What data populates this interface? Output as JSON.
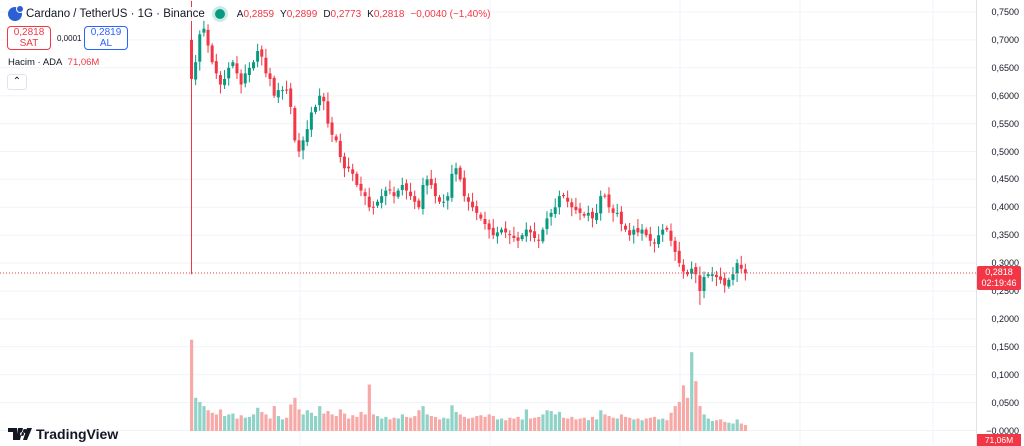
{
  "header": {
    "symbol": "Cardano / TetherUS · 1G · Binance",
    "ohlc": [
      {
        "label": "A",
        "value": "0,2859"
      },
      {
        "label": "Y",
        "value": "0,2899"
      },
      {
        "label": "D",
        "value": "0,2773"
      },
      {
        "label": "K",
        "value": "0,2818"
      }
    ],
    "change": "−0,0040 (−1,40%)"
  },
  "trade": {
    "sell_price": "0,2818",
    "sell_label": "SAT",
    "spread": "0,0001",
    "buy_price": "0,2819",
    "buy_label": "AL"
  },
  "volume_legend": {
    "label": "Hacim · ADA",
    "value": "71,06M"
  },
  "collapse_icon": "chevron-up-icon",
  "price_axis": [
    "0,7500",
    "0,7000",
    "0,6500",
    "0,6000",
    "0,5500",
    "0,5000",
    "0,4500",
    "0,4000",
    "0,3500",
    "0,3000",
    "0,2500",
    "0,2000",
    "0,1500",
    "0,1000",
    "0,0500",
    "−0,0000"
  ],
  "last_price": {
    "price": "0,2818",
    "countdown": "02:19:46"
  },
  "last_volume": "71,06M",
  "brand": "TradingView",
  "colors": {
    "up": "#089981",
    "down": "#f23645",
    "up_volume": "#8fd3c8",
    "down_volume": "#f7a9a7"
  },
  "chart_data": {
    "type": "candlestick",
    "closes": [
      0.63,
      0.66,
      0.71,
      0.72,
      0.69,
      0.66,
      0.64,
      0.62,
      0.63,
      0.65,
      0.66,
      0.64,
      0.62,
      0.64,
      0.65,
      0.66,
      0.68,
      0.67,
      0.64,
      0.63,
      0.6,
      0.61,
      0.61,
      0.61,
      0.58,
      0.52,
      0.5,
      0.52,
      0.54,
      0.57,
      0.58,
      0.6,
      0.59,
      0.55,
      0.53,
      0.52,
      0.49,
      0.47,
      0.47,
      0.46,
      0.44,
      0.43,
      0.42,
      0.4,
      0.4,
      0.41,
      0.42,
      0.43,
      0.43,
      0.42,
      0.43,
      0.44,
      0.43,
      0.42,
      0.41,
      0.4,
      0.44,
      0.45,
      0.44,
      0.42,
      0.41,
      0.41,
      0.42,
      0.46,
      0.47,
      0.45,
      0.42,
      0.41,
      0.4,
      0.39,
      0.38,
      0.37,
      0.36,
      0.35,
      0.355,
      0.36,
      0.355,
      0.35,
      0.345,
      0.34,
      0.35,
      0.36,
      0.355,
      0.345,
      0.34,
      0.36,
      0.38,
      0.39,
      0.4,
      0.42,
      0.42,
      0.41,
      0.4,
      0.395,
      0.39,
      0.385,
      0.39,
      0.38,
      0.39,
      0.42,
      0.42,
      0.4,
      0.39,
      0.39,
      0.37,
      0.36,
      0.35,
      0.36,
      0.355,
      0.36,
      0.35,
      0.34,
      0.335,
      0.35,
      0.36,
      0.36,
      0.34,
      0.32,
      0.3,
      0.285,
      0.28,
      0.29,
      0.28,
      0.25,
      0.275,
      0.28,
      0.28,
      0.275,
      0.27,
      0.26,
      0.27,
      0.28,
      0.3,
      0.29,
      0.2818
    ],
    "first_open": 0.7,
    "volumes_m": [
      1100,
      400,
      350,
      300,
      250,
      220,
      200,
      260,
      180,
      200,
      210,
      150,
      190,
      160,
      170,
      200,
      280,
      230,
      200,
      150,
      300,
      180,
      140,
      160,
      320,
      400,
      260,
      200,
      250,
      220,
      180,
      300,
      210,
      240,
      200,
      180,
      260,
      210,
      150,
      190,
      170,
      230,
      200,
      560,
      200,
      180,
      150,
      170,
      140,
      160,
      150,
      200,
      170,
      160,
      180,
      250,
      300,
      200,
      180,
      170,
      140,
      160,
      150,
      310,
      230,
      200,
      170,
      150,
      160,
      180,
      190,
      170,
      200,
      180,
      140,
      150,
      130,
      160,
      150,
      170,
      140,
      260,
      150,
      160,
      170,
      200,
      250,
      240,
      200,
      230,
      160,
      150,
      170,
      140,
      150,
      160,
      130,
      170,
      140,
      250,
      200,
      180,
      160,
      150,
      200,
      170,
      160,
      140,
      150,
      130,
      150,
      160,
      170,
      140,
      150,
      130,
      220,
      300,
      350,
      550,
      400,
      950,
      600,
      300,
      200,
      150,
      120,
      130,
      140,
      110,
      100,
      90,
      140,
      90,
      71.06
    ],
    "ylim": [
      0,
      0.75
    ]
  }
}
